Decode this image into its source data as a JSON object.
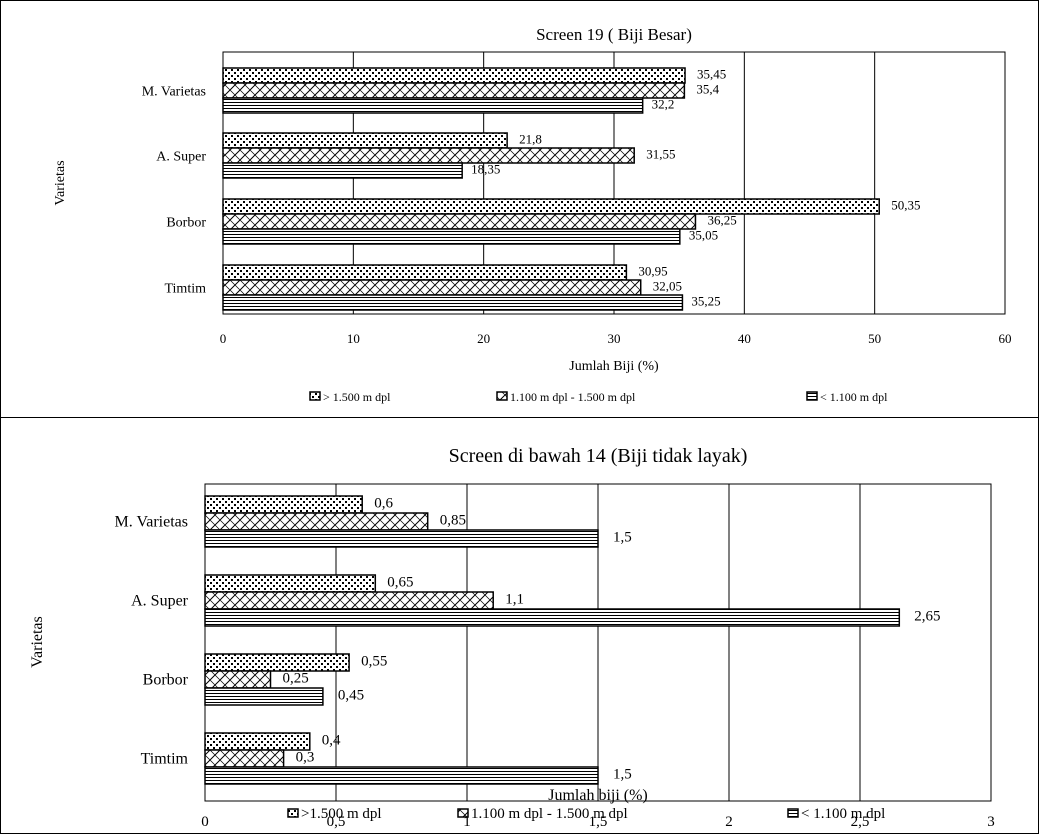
{
  "chart_data": [
    {
      "type": "bar",
      "orientation": "horizontal",
      "title": "Screen 19 ( Biji Besar)",
      "xlabel": "Jumlah Biji (%)",
      "ylabel": "Varietas",
      "categories": [
        "M. Varietas",
        "A. Super",
        "Borbor",
        "Timtim"
      ],
      "xlim": [
        0,
        60
      ],
      "xticks": [
        "0",
        "10",
        "20",
        "30",
        "40",
        "50",
        "60"
      ],
      "grid": true,
      "legend_position": "bottom",
      "series": [
        {
          "name": "> 1.500 m dpl",
          "values": [
            35.45,
            21.8,
            50.35,
            30.95
          ],
          "labels": [
            "35,45",
            "21,8",
            "50,35",
            "30,95"
          ]
        },
        {
          "name": "1.100 m dpl - 1.500 m dpl",
          "values": [
            35.4,
            31.55,
            36.25,
            32.05
          ],
          "labels": [
            "35,4",
            "31,55",
            "36,25",
            "32,05"
          ]
        },
        {
          "name": "< 1.100  m dpl",
          "values": [
            32.2,
            18.35,
            35.05,
            35.25
          ],
          "labels": [
            "32,2",
            "18,35",
            "35,05",
            "35,25"
          ]
        }
      ]
    },
    {
      "type": "bar",
      "orientation": "horizontal",
      "title": "Screen di bawah  14 (Biji tidak layak)",
      "xlabel": "Jumlah biji (%)",
      "ylabel": "Varietas",
      "categories": [
        "M. Varietas",
        "A. Super",
        "Borbor",
        "Timtim"
      ],
      "xlim": [
        0,
        3
      ],
      "xticks": [
        "0",
        "0,5",
        "1",
        "1,5",
        "2",
        "2,5",
        "3"
      ],
      "grid": true,
      "legend_position": "bottom",
      "series": [
        {
          "name": ">1.500 m dpl",
          "values": [
            0.6,
            0.65,
            0.55,
            0.4
          ],
          "labels": [
            "0,6",
            "0,65",
            "0,55",
            "0,4"
          ]
        },
        {
          "name": "1.100 m dpl - 1.500 m dpl",
          "values": [
            0.85,
            1.1,
            0.25,
            0.3
          ],
          "labels": [
            "0,85",
            "1,1",
            "0,25",
            "0,3"
          ]
        },
        {
          "name": "< 1.100 m dpl",
          "values": [
            1.5,
            2.65,
            0.45,
            1.5
          ],
          "labels": [
            "1,5",
            "2,65",
            "0,45",
            "1,5"
          ]
        }
      ]
    }
  ]
}
